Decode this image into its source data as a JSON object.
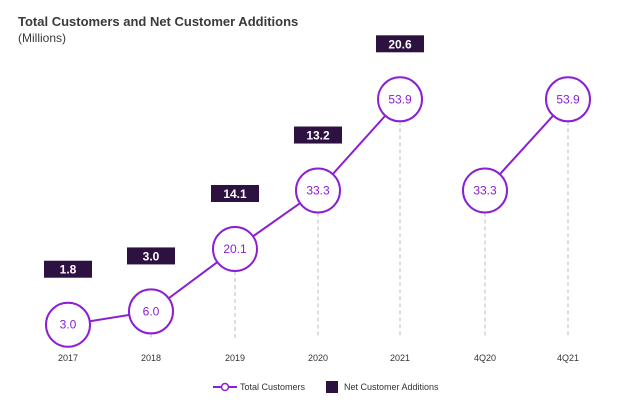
{
  "title": "Total Customers and Net Customer Additions",
  "subtitle": "(Millions)",
  "colors": {
    "line": "#8a1fd4",
    "box": "#2d1140",
    "dashed": "#c8c8c8",
    "circle_fill": "#ffffff"
  },
  "chart_data": {
    "type": "line",
    "title": "Total Customers and Net Customer Additions",
    "subtitle": "(Millions)",
    "categories": [
      "2017",
      "2018",
      "2019",
      "2020",
      "2021",
      "4Q20",
      "4Q21"
    ],
    "series": [
      {
        "name": "Total Customers",
        "values": [
          3.0,
          6.0,
          20.1,
          33.3,
          53.9,
          33.3,
          53.9
        ],
        "segments": [
          [
            0,
            4
          ],
          [
            5,
            6
          ]
        ]
      },
      {
        "name": "Net Customer Additions",
        "values": [
          1.8,
          3.0,
          14.1,
          13.2,
          20.6,
          null,
          null
        ]
      }
    ],
    "ylim": [
      0,
      56
    ],
    "grid": false,
    "legend": "bottom-center"
  }
}
